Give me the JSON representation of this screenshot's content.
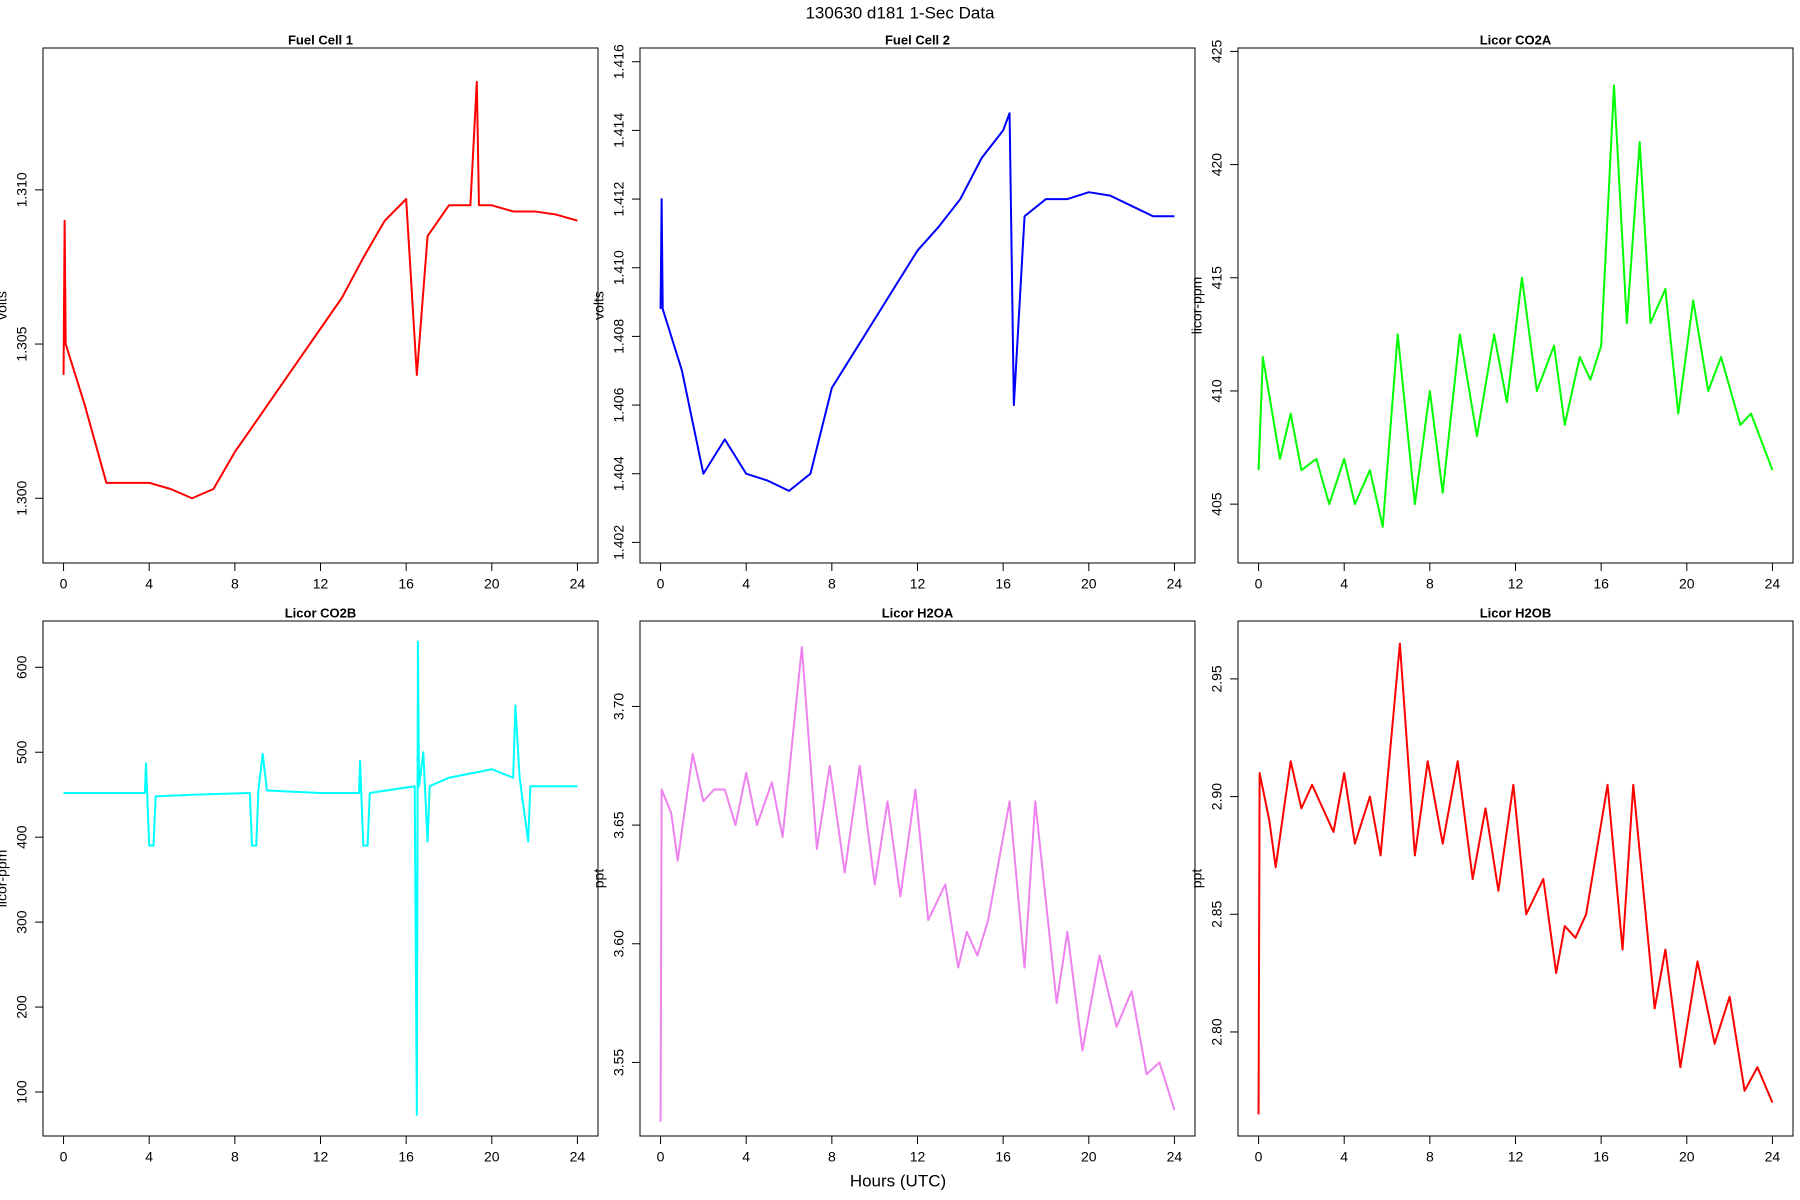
{
  "title": "130630   d181   1-Sec Data",
  "xlabel": "Hours (UTC)",
  "chart_data": [
    {
      "type": "line",
      "title": "Fuel Cell 1",
      "ylabel": "volts",
      "xlim": [
        -0.96,
        24.96
      ],
      "ylim": [
        1.2979,
        1.3146
      ],
      "xticks": [
        0,
        4,
        8,
        12,
        16,
        20,
        24
      ],
      "yticks": [
        {
          "value": 1.3,
          "label": "1.300"
        },
        {
          "value": 1.305,
          "label": "1.305"
        },
        {
          "value": 1.31,
          "label": "1.310"
        }
      ],
      "series": [
        {
          "color": "#ff0000",
          "x": [
            0,
            0.05,
            0.1,
            1,
            2,
            3,
            4,
            5,
            6,
            7,
            8,
            9,
            10,
            11,
            12,
            13,
            14,
            15,
            16,
            16.5,
            17,
            18,
            19,
            19.3,
            19.4,
            20,
            21,
            22,
            23,
            24
          ],
          "values": [
            1.304,
            1.309,
            1.305,
            1.303,
            1.3005,
            1.3005,
            1.3005,
            1.3003,
            1.3,
            1.3003,
            1.3015,
            1.3025,
            1.3035,
            1.3045,
            1.3055,
            1.3065,
            1.3078,
            1.309,
            1.3097,
            1.304,
            1.3085,
            1.3095,
            1.3095,
            1.3135,
            1.3095,
            1.3095,
            1.3093,
            1.3093,
            1.3092,
            1.309
          ]
        }
      ]
    },
    {
      "type": "line",
      "title": "Fuel Cell 2",
      "ylabel": "volts",
      "xlim": [
        -0.96,
        24.96
      ],
      "ylim": [
        1.4014,
        1.4164
      ],
      "xticks": [
        0,
        4,
        8,
        12,
        16,
        20,
        24
      ],
      "yticks": [
        1.402,
        1.404,
        1.406,
        1.408,
        {
          "value": 1.41,
          "label": "1.410"
        },
        1.412,
        1.414,
        1.416
      ],
      "series": [
        {
          "color": "#0000ff",
          "x": [
            0,
            0.05,
            0.1,
            1,
            2,
            3,
            4,
            5,
            6,
            7,
            8,
            9,
            10,
            11,
            12,
            13,
            14,
            15,
            16,
            16.3,
            16.5,
            17,
            18,
            19,
            20,
            21,
            22,
            23,
            24
          ],
          "values": [
            1.4088,
            1.412,
            1.4088,
            1.407,
            1.404,
            1.405,
            1.404,
            1.4038,
            1.4035,
            1.404,
            1.4065,
            1.4075,
            1.4085,
            1.4095,
            1.4105,
            1.4112,
            1.412,
            1.4132,
            1.414,
            1.4145,
            1.406,
            1.4115,
            1.412,
            1.412,
            1.4122,
            1.4121,
            1.4118,
            1.4115,
            1.4115
          ]
        }
      ]
    },
    {
      "type": "line",
      "title": "Licor CO2A",
      "ylabel": "licor-ppm",
      "xlim": [
        -0.96,
        24.96
      ],
      "ylim": [
        402.4,
        425.15
      ],
      "xticks": [
        0,
        4,
        8,
        12,
        16,
        20,
        24
      ],
      "yticks": [
        405,
        410,
        415,
        420,
        425
      ],
      "series": [
        {
          "color": "#00ff00",
          "x": [
            0,
            0.2,
            1,
            1.5,
            2,
            2.7,
            3.3,
            4,
            4.5,
            5.2,
            5.8,
            6.5,
            7.3,
            8,
            8.6,
            9.4,
            10.2,
            11,
            11.6,
            12.3,
            13,
            13.8,
            14.3,
            15,
            15.5,
            16,
            16.6,
            17.2,
            17.8,
            18.3,
            19,
            19.6,
            20.3,
            21,
            21.6,
            22.5,
            23,
            23.6,
            24
          ],
          "values": [
            406.5,
            411.5,
            407,
            409,
            406.5,
            407,
            405,
            407,
            405,
            406.5,
            404,
            412.5,
            405,
            410,
            405.5,
            412.5,
            408,
            412.5,
            409.5,
            415,
            410,
            412,
            408.5,
            411.5,
            410.5,
            412,
            423.5,
            413,
            421,
            413,
            414.5,
            409,
            414,
            410,
            411.5,
            408.5,
            409,
            407.5,
            406.5
          ]
        }
      ]
    },
    {
      "type": "line",
      "title": "Licor CO2B",
      "ylabel": "licor-ppm",
      "xlim": [
        -0.96,
        24.96
      ],
      "ylim": [
        48.2,
        654.5
      ],
      "xticks": [
        0,
        4,
        8,
        12,
        16,
        20,
        24
      ],
      "yticks": [
        100,
        200,
        300,
        400,
        500,
        600
      ],
      "series": [
        {
          "color": "#00ffff",
          "x": [
            0,
            3.8,
            3.85,
            3.9,
            4,
            4.2,
            4.3,
            6,
            8.7,
            8.8,
            9,
            9.1,
            9.3,
            9.5,
            12,
            13.8,
            13.85,
            13.9,
            14,
            14.2,
            14.3,
            16.4,
            16.5,
            16.55,
            16.6,
            16.8,
            17,
            17.1,
            18,
            19,
            20,
            21,
            21.1,
            21.3,
            21.7,
            21.8,
            23,
            24
          ],
          "values": [
            452,
            452,
            487,
            455,
            390,
            390,
            448,
            450,
            452,
            390,
            390,
            455,
            498,
            455,
            452,
            452,
            490,
            455,
            390,
            390,
            452,
            460,
            73,
            630,
            460,
            500,
            395,
            460,
            470,
            475,
            480,
            470,
            555,
            470,
            395,
            460,
            460,
            460
          ]
        }
      ]
    },
    {
      "type": "line",
      "title": "Licor H2OA",
      "ylabel": "ppt",
      "xlim": [
        -0.96,
        24.96
      ],
      "ylim": [
        3.519,
        3.736
      ],
      "xticks": [
        0,
        4,
        8,
        12,
        16,
        20,
        24
      ],
      "yticks": [
        3.55,
        {
          "value": 3.6,
          "label": "3.60"
        },
        3.65,
        {
          "value": 3.7,
          "label": "3.70"
        }
      ],
      "series": [
        {
          "color": "#ee82ee",
          "x": [
            0,
            0.05,
            0.5,
            0.8,
            1.5,
            2,
            2.5,
            3,
            3.5,
            4,
            4.5,
            5.2,
            5.7,
            6.6,
            7.3,
            7.9,
            8.6,
            9.3,
            10,
            10.6,
            11.2,
            11.9,
            12.5,
            13.3,
            13.9,
            14.3,
            14.8,
            15.3,
            16.3,
            17,
            17.5,
            18.5,
            19,
            19.7,
            20.5,
            21.3,
            22,
            22.7,
            23.3,
            24
          ],
          "values": [
            3.525,
            3.665,
            3.655,
            3.635,
            3.68,
            3.66,
            3.665,
            3.665,
            3.65,
            3.672,
            3.65,
            3.668,
            3.645,
            3.725,
            3.64,
            3.675,
            3.63,
            3.675,
            3.625,
            3.66,
            3.62,
            3.665,
            3.61,
            3.625,
            3.59,
            3.605,
            3.595,
            3.61,
            3.66,
            3.59,
            3.66,
            3.575,
            3.605,
            3.555,
            3.595,
            3.565,
            3.58,
            3.545,
            3.55,
            3.53
          ]
        }
      ]
    },
    {
      "type": "line",
      "title": "Licor H2OB",
      "ylabel": "ppt",
      "xlim": [
        -0.96,
        24.96
      ],
      "ylim": [
        2.7558,
        2.9746
      ],
      "xticks": [
        0,
        4,
        8,
        12,
        16,
        20,
        24
      ],
      "yticks": [
        {
          "value": 2.8,
          "label": "2.80"
        },
        2.85,
        {
          "value": 2.9,
          "label": "2.90"
        },
        2.95
      ],
      "series": [
        {
          "color": "#ff0000",
          "x": [
            0,
            0.05,
            0.5,
            0.8,
            1.5,
            2,
            2.5,
            3,
            3.5,
            4,
            4.5,
            5.2,
            5.7,
            6.6,
            7.3,
            7.9,
            8.6,
            9.3,
            10,
            10.6,
            11.2,
            11.9,
            12.5,
            13.3,
            13.9,
            14.3,
            14.8,
            15.3,
            16.3,
            17,
            17.5,
            18.5,
            19,
            19.7,
            20.5,
            21.3,
            22,
            22.7,
            23.3,
            24
          ],
          "values": [
            2.765,
            2.91,
            2.89,
            2.87,
            2.915,
            2.895,
            2.905,
            2.895,
            2.885,
            2.91,
            2.88,
            2.9,
            2.875,
            2.965,
            2.875,
            2.915,
            2.88,
            2.915,
            2.865,
            2.895,
            2.86,
            2.905,
            2.85,
            2.865,
            2.825,
            2.845,
            2.84,
            2.85,
            2.905,
            2.835,
            2.905,
            2.81,
            2.835,
            2.785,
            2.83,
            2.795,
            2.815,
            2.775,
            2.785,
            2.77
          ]
        }
      ]
    }
  ]
}
